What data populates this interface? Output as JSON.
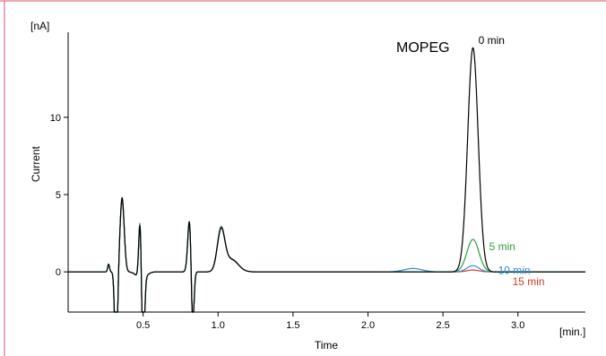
{
  "chart_data": {
    "type": "line",
    "title": "",
    "xlabel": "Time",
    "ylabel": "Current",
    "x_unit": "[min.]",
    "y_unit": "[nA]",
    "xlim": [
      0.0,
      3.45
    ],
    "ylim": [
      -2.6,
      15.5
    ],
    "xticks": [
      0.5,
      1.0,
      1.5,
      2.0,
      2.5,
      3.0
    ],
    "xtick_labels": [
      "0.5",
      "1.0",
      "1.5",
      "2.0",
      "2.5",
      "3.0"
    ],
    "yticks": [
      0,
      5,
      10
    ],
    "ytick_labels": [
      "0",
      "5",
      "10"
    ],
    "grid": false,
    "legend": "none",
    "annotation": "MOPEG",
    "shared_peaks": [
      {
        "t": 0.36,
        "h": 4.8,
        "w": 0.014
      },
      {
        "t": 0.48,
        "h": 3.8,
        "w": 0.009
      },
      {
        "t": 0.81,
        "h": 3.5,
        "w": 0.012
      },
      {
        "t": 1.02,
        "h": 2.6,
        "w": 0.025
      },
      {
        "t": 1.09,
        "h": 0.8,
        "w": 0.045
      }
    ],
    "shared_dips": [
      {
        "t": 0.32,
        "h": -6.5,
        "w": 0.009
      },
      {
        "t": 0.5,
        "h": -5.5,
        "w": 0.009
      },
      {
        "t": 0.83,
        "h": -4.0,
        "w": 0.009
      },
      {
        "t": 0.49,
        "h": -0.5,
        "w": 0.03
      }
    ],
    "series": [
      {
        "name": "0 min",
        "color": "#000000",
        "peak_time": 2.7,
        "peak_height": 14.5,
        "peak_width": 0.035,
        "label_pos": "top"
      },
      {
        "name": "5 min",
        "color": "#2e9e3e",
        "peak_time": 2.7,
        "peak_height": 2.1,
        "peak_width": 0.04,
        "label_pos": "right"
      },
      {
        "name": "10 min",
        "color": "#2b8fd6",
        "peak_time": 2.7,
        "peak_height": 0.4,
        "peak_width": 0.04,
        "label_pos": "right"
      },
      {
        "name": "15 min",
        "color": "#d33a2a",
        "peak_time": 2.7,
        "peak_height": 0.12,
        "peak_width": 0.04,
        "label_pos": "right"
      }
    ]
  }
}
